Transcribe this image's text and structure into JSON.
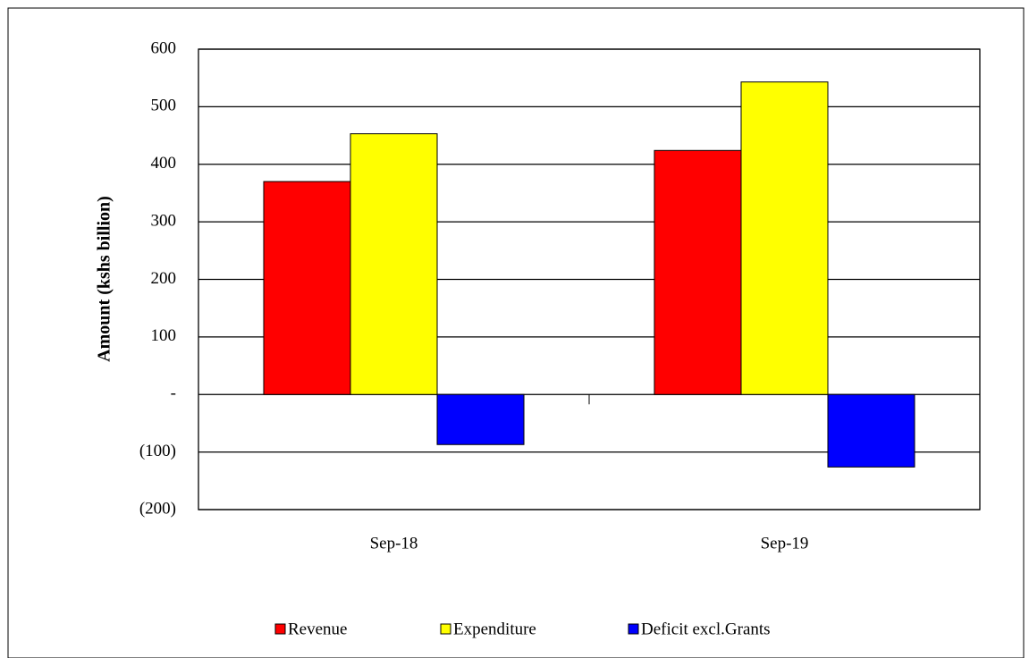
{
  "chart_data": {
    "type": "bar",
    "y_label": "Amount  (kshs billion)",
    "categories": [
      "Sep-18",
      "Sep-19"
    ],
    "series": [
      {
        "name": "Revenue",
        "color": "#ff0000",
        "values": [
          370,
          424
        ]
      },
      {
        "name": "Expenditure",
        "color": "#ffff00",
        "values": [
          453,
          543
        ]
      },
      {
        "name": "Deficit excl.Grants",
        "color": "#0000ff",
        "values": [
          -87,
          -126
        ]
      }
    ],
    "ylim": [
      -200,
      600
    ],
    "yticks": [
      {
        "value": -200,
        "label": "(200)"
      },
      {
        "value": -100,
        "label": "(100)"
      },
      {
        "value": 0,
        "label": "-"
      },
      100,
      200,
      300,
      400,
      500,
      600
    ],
    "grid": true,
    "legend": "bottom"
  }
}
